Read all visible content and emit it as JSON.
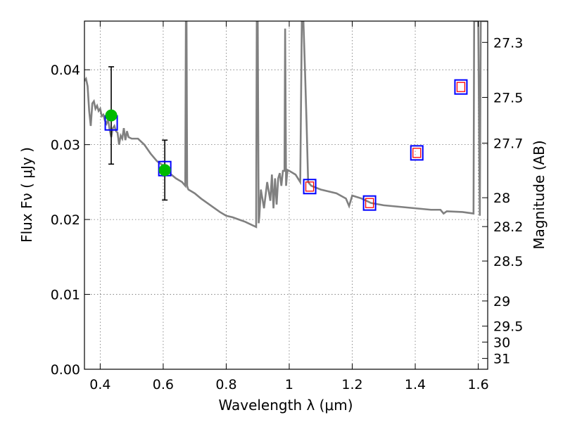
{
  "chart_data": {
    "type": "scatter",
    "title": "",
    "xlabel": "Wavelength  λ (μm)",
    "ylabel": "Flux  Fν  ( μJy )",
    "y2label": "Magnitude (AB)",
    "xlim": [
      0.35,
      1.63
    ],
    "ylim": [
      0.0,
      0.0465
    ],
    "xticks": [
      0.4,
      0.6,
      0.8,
      1.0,
      1.2,
      1.4,
      1.6
    ],
    "xtick_labels": [
      "0.4",
      "0.6",
      "0.8",
      "1",
      "1.2",
      "1.4",
      "1.6"
    ],
    "yticks": [
      0.0,
      0.01,
      0.02,
      0.03,
      0.04
    ],
    "ytick_labels": [
      "0.00",
      "0.01",
      "0.02",
      "0.03",
      "0.04"
    ],
    "y2ticks": [
      27.3,
      27.5,
      27.7,
      28,
      28.2,
      28.5,
      29,
      29.5,
      30,
      31
    ],
    "y2tick_labels": [
      "27.3",
      "27.5",
      "27.7",
      "28",
      "28.2",
      "28.5",
      "29",
      "29.5",
      "30",
      "31"
    ],
    "grid": true,
    "colors": {
      "model": "#808080",
      "observed": "#00bb00",
      "errorbar": "#000000",
      "model_band_blue": "#0000ff",
      "model_band_red": "#ff0000"
    },
    "series": [
      {
        "kind": "line",
        "x": [
          0.35,
          0.355,
          0.36,
          0.365,
          0.37,
          0.375,
          0.38,
          0.385,
          0.39,
          0.395,
          0.4,
          0.405,
          0.41,
          0.415,
          0.42,
          0.425,
          0.43,
          0.435,
          0.44,
          0.445,
          0.45,
          0.455,
          0.46,
          0.465,
          0.47,
          0.475,
          0.48,
          0.485,
          0.49,
          0.5,
          0.52,
          0.54,
          0.56,
          0.58,
          0.6,
          0.62,
          0.64,
          0.66,
          0.67,
          0.672,
          0.674,
          0.676,
          0.678,
          0.68,
          0.7,
          0.72,
          0.74,
          0.76,
          0.78,
          0.8,
          0.82,
          0.84,
          0.86,
          0.88,
          0.895,
          0.897,
          0.9,
          0.903,
          0.905,
          0.91,
          0.92,
          0.93,
          0.94,
          0.945,
          0.95,
          0.955,
          0.96,
          0.965,
          0.97,
          0.975,
          0.98,
          0.985,
          0.987,
          0.99,
          0.993,
          0.995,
          1.0,
          1.02,
          1.035,
          1.04,
          1.045,
          1.05,
          1.055,
          1.06,
          1.07,
          1.1,
          1.15,
          1.18,
          1.19,
          1.2,
          1.23,
          1.26,
          1.3,
          1.35,
          1.4,
          1.45,
          1.48,
          1.49,
          1.5,
          1.55,
          1.585,
          1.587,
          1.59,
          1.595,
          1.6,
          1.603,
          1.605,
          1.608,
          1.61,
          1.63
        ],
        "y": [
          0.0385,
          0.0388,
          0.0378,
          0.0345,
          0.0325,
          0.0355,
          0.0358,
          0.0348,
          0.0352,
          0.0345,
          0.0348,
          0.0338,
          0.034,
          0.0332,
          0.0328,
          0.0334,
          0.032,
          0.031,
          0.0322,
          0.0325,
          0.0318,
          0.0316,
          0.03,
          0.0312,
          0.0308,
          0.0322,
          0.0306,
          0.0318,
          0.031,
          0.0308,
          0.0308,
          0.03,
          0.0288,
          0.0278,
          0.0272,
          0.0262,
          0.0255,
          0.025,
          0.0245,
          0.0465,
          0.0465,
          0.0245,
          0.0242,
          0.024,
          0.0235,
          0.0228,
          0.0222,
          0.0216,
          0.021,
          0.0205,
          0.0203,
          0.02,
          0.0197,
          0.0193,
          0.019,
          0.0465,
          0.0465,
          0.0195,
          0.0203,
          0.024,
          0.0215,
          0.025,
          0.0225,
          0.026,
          0.0215,
          0.0255,
          0.022,
          0.0255,
          0.0262,
          0.0245,
          0.0265,
          0.0265,
          0.0455,
          0.0245,
          0.026,
          0.0266,
          0.0265,
          0.026,
          0.025,
          0.0465,
          0.0465,
          0.04,
          0.033,
          0.025,
          0.0245,
          0.024,
          0.0235,
          0.0228,
          0.0218,
          0.0232,
          0.0228,
          0.0222,
          0.0219,
          0.0217,
          0.0215,
          0.0213,
          0.0213,
          0.0208,
          0.0211,
          0.021,
          0.0208,
          0.0465,
          0.0465,
          0.0465,
          0.0465,
          0.03,
          0.0205,
          0.0465,
          0.0465,
          0.0465
        ]
      },
      {
        "kind": "observed",
        "x": [
          0.435,
          0.605
        ],
        "y": [
          0.0339,
          0.0266
        ],
        "err": [
          0.0065,
          0.004
        ]
      },
      {
        "kind": "model_bands",
        "x": [
          0.435,
          0.605,
          1.065,
          1.255,
          1.405,
          1.545
        ],
        "y": [
          0.0329,
          0.0268,
          0.0244,
          0.0222,
          0.0289,
          0.0377
        ],
        "boxes": [
          "blue",
          "blue",
          "blue+red",
          "blue+red",
          "blue+red",
          "blue+red"
        ]
      }
    ]
  }
}
